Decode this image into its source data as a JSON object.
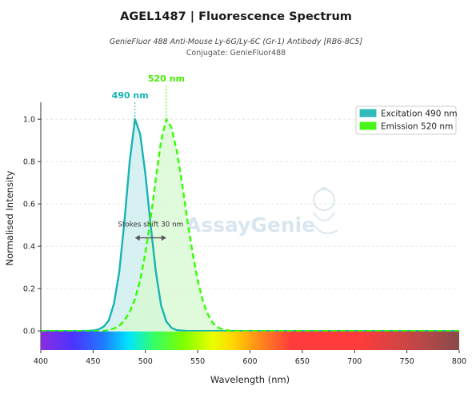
{
  "header": {
    "title": "AGEL1487  |  Fluorescence Spectrum",
    "subtitle": "GenieFluor 488 Anti-Mouse Ly-6G/Ly-6C (Gr-1) Antibody [RB6-8C5]",
    "conjugate": "Conjugate: GenieFluor488"
  },
  "watermark": "AssayGenie",
  "colors": {
    "excitation": "#19b3b3",
    "emission": "#33ff00",
    "excitation_fill": "#d3eff2",
    "emission_fill": "#d6fad0"
  },
  "chart_data": {
    "type": "area",
    "xlabel": "Wavelength (nm)",
    "ylabel": "Normalised Intensity",
    "xlim": [
      400,
      800
    ],
    "ylim": [
      -0.09,
      1.08
    ],
    "xticks": [
      400,
      450,
      500,
      550,
      600,
      650,
      700,
      750,
      800
    ],
    "yticks": [
      0.0,
      0.2,
      0.4,
      0.6,
      0.8,
      1.0
    ],
    "xtick_labels": [
      "400",
      "450",
      "500",
      "550",
      "600",
      "650",
      "700",
      "750",
      "800"
    ],
    "ytick_labels": [
      "0.0",
      "0.2",
      "0.4",
      "0.6",
      "0.8",
      "1.0"
    ],
    "grid": true,
    "legend_position": "top-right",
    "spectrum_bar": true,
    "series": [
      {
        "name": "Excitation",
        "legend_label": "Excitation  490 nm",
        "peak": 490,
        "peak_label": "490 nm",
        "line_style": "solid",
        "points": [
          [
            400,
            0.0
          ],
          [
            440,
            0.0
          ],
          [
            450,
            0.002
          ],
          [
            455,
            0.007
          ],
          [
            460,
            0.02
          ],
          [
            465,
            0.05
          ],
          [
            470,
            0.13
          ],
          [
            475,
            0.28
          ],
          [
            480,
            0.52
          ],
          [
            485,
            0.8
          ],
          [
            490,
            1.0
          ],
          [
            495,
            0.93
          ],
          [
            500,
            0.74
          ],
          [
            505,
            0.5
          ],
          [
            510,
            0.28
          ],
          [
            515,
            0.12
          ],
          [
            520,
            0.045
          ],
          [
            525,
            0.015
          ],
          [
            530,
            0.004
          ],
          [
            540,
            0.0
          ],
          [
            800,
            0.0
          ]
        ]
      },
      {
        "name": "Emission",
        "legend_label": "Emission  520 nm",
        "peak": 520,
        "peak_label": "520 nm",
        "line_style": "dashed",
        "points": [
          [
            400,
            0.0
          ],
          [
            460,
            0.0
          ],
          [
            465,
            0.005
          ],
          [
            470,
            0.012
          ],
          [
            475,
            0.025
          ],
          [
            480,
            0.05
          ],
          [
            485,
            0.09
          ],
          [
            490,
            0.15
          ],
          [
            495,
            0.24
          ],
          [
            500,
            0.37
          ],
          [
            505,
            0.53
          ],
          [
            510,
            0.72
          ],
          [
            515,
            0.9
          ],
          [
            520,
            1.0
          ],
          [
            525,
            0.96
          ],
          [
            530,
            0.85
          ],
          [
            535,
            0.7
          ],
          [
            540,
            0.53
          ],
          [
            545,
            0.37
          ],
          [
            550,
            0.24
          ],
          [
            555,
            0.14
          ],
          [
            560,
            0.075
          ],
          [
            565,
            0.035
          ],
          [
            570,
            0.015
          ],
          [
            575,
            0.006
          ],
          [
            580,
            0.002
          ],
          [
            590,
            0.0
          ],
          [
            800,
            0.0
          ]
        ]
      }
    ],
    "annotations": [
      {
        "text": "Stokes shift  30 nm",
        "from": 490,
        "to": 520,
        "y": 0.44
      }
    ]
  }
}
